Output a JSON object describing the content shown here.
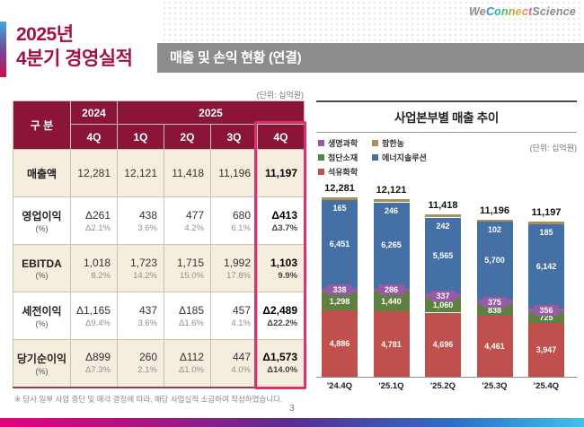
{
  "logo": {
    "we": "We",
    "connect": "Connect",
    "science": "Science"
  },
  "slide_title": {
    "line1": "2025년",
    "line2": "4분기 경영실적"
  },
  "section_header": "매출 및 손익 현황 (연결)",
  "unit_note_table": "(단위: 십억원)",
  "unit_note_chart": "(단위: 십억원)",
  "footnote": "※ 당사 일부 사업 중단 및 매각 결정에 따라, 해당 사업실적 소급하여 작성하였습니다.",
  "page_number": "3",
  "table": {
    "corner_label": "구 분",
    "year_groups": [
      {
        "label": "2024",
        "span": 1
      },
      {
        "label": "2025",
        "span": 4
      }
    ],
    "quarter_headers": [
      "4Q",
      "1Q",
      "2Q",
      "3Q",
      "4Q"
    ],
    "highlight_col_index": 4,
    "rows": [
      {
        "label": "매출액",
        "sub": "",
        "values": [
          {
            "v": "12,281",
            "p": ""
          },
          {
            "v": "12,121",
            "p": ""
          },
          {
            "v": "11,418",
            "p": ""
          },
          {
            "v": "11,196",
            "p": ""
          },
          {
            "v": "11,197",
            "p": ""
          }
        ]
      },
      {
        "label": "영업이익",
        "sub": "(%)",
        "values": [
          {
            "v": "Δ261",
            "p": "Δ2.1%"
          },
          {
            "v": "438",
            "p": "3.6%"
          },
          {
            "v": "477",
            "p": "4.2%"
          },
          {
            "v": "680",
            "p": "6.1%"
          },
          {
            "v": "Δ413",
            "p": "Δ3.7%"
          }
        ]
      },
      {
        "label": "EBITDA",
        "sub": "(%)",
        "values": [
          {
            "v": "1,018",
            "p": "8.2%"
          },
          {
            "v": "1,723",
            "p": "14.2%"
          },
          {
            "v": "1,715",
            "p": "15.0%"
          },
          {
            "v": "1,992",
            "p": "17.8%"
          },
          {
            "v": "1,103",
            "p": "9.9%"
          }
        ]
      },
      {
        "label": "세전이익",
        "sub": "(%)",
        "values": [
          {
            "v": "Δ1,165",
            "p": "Δ9.4%"
          },
          {
            "v": "437",
            "p": "3.6%"
          },
          {
            "v": "Δ185",
            "p": "Δ1.6%"
          },
          {
            "v": "457",
            "p": "4.1%"
          },
          {
            "v": "Δ2,489",
            "p": "Δ22.2%"
          }
        ]
      },
      {
        "label": "당기순이익",
        "sub": "(%)",
        "values": [
          {
            "v": "Δ899",
            "p": "Δ7.3%"
          },
          {
            "v": "260",
            "p": "2.1%"
          },
          {
            "v": "Δ112",
            "p": "Δ1.0%"
          },
          {
            "v": "447",
            "p": "4.0%"
          },
          {
            "v": "Δ1,573",
            "p": "Δ14.0%"
          }
        ]
      }
    ]
  },
  "chart": {
    "title": "사업본부별 매출 추이",
    "colors": {
      "생명과학": "#955ba5",
      "팜한농": "#a98f58",
      "첨단소재": "#5e8040",
      "에너지솔루션": "#4470a6",
      "석유화학": "#c0504d"
    },
    "legend_columns": [
      [
        "생명과학",
        "첨단소재",
        "석유화학"
      ],
      [
        "팜한농",
        "에너지솔루션"
      ]
    ]
  },
  "chart_data": {
    "type": "bar",
    "stacked": true,
    "title": "사업본부별 매출 추이",
    "unit_label": "(단위: 십억원)",
    "categories": [
      "'24.4Q",
      "'25.1Q",
      "'25.2Q",
      "'25.3Q",
      "'25.4Q"
    ],
    "totals": [
      12281,
      12121,
      11418,
      11196,
      11197
    ],
    "series": [
      {
        "name": "석유화학",
        "values": [
          4886,
          4781,
          4696,
          4461,
          3947
        ]
      },
      {
        "name": "첨단소재",
        "values": [
          1298,
          1440,
          1060,
          838,
          725
        ]
      },
      {
        "name": "생명과학",
        "values": [
          338,
          286,
          337,
          375,
          356
        ]
      },
      {
        "name": "에너지솔루션",
        "values": [
          6451,
          6265,
          5565,
          5700,
          6142
        ]
      },
      {
        "name": "팜한농",
        "values": [
          165,
          246,
          242,
          102,
          185
        ]
      }
    ],
    "legend_position": "top-left",
    "grid": false
  }
}
